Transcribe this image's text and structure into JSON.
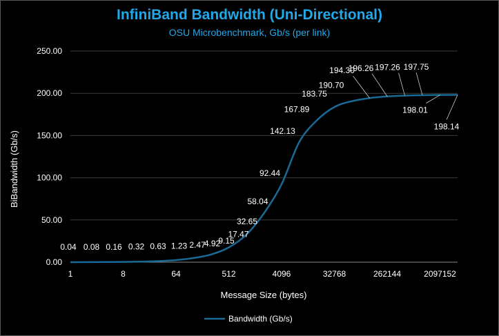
{
  "chart_data": {
    "type": "line",
    "title": "InfiniBand Bandwidth (Uni-Directional)",
    "subtitle": "OSU Microbenchmark, Gb/s (per link)",
    "xlabel": "Message Size (bytes)",
    "ylabel": "BiBandwidth (Gb/s)",
    "x_scale": "log2",
    "xlim": [
      1,
      4194304
    ],
    "ylim": [
      0,
      250
    ],
    "yticks": [
      "0.00",
      "50.00",
      "100.00",
      "150.00",
      "200.00",
      "250.00"
    ],
    "xtick_labels": [
      "1",
      "8",
      "64",
      "512",
      "4096",
      "32768",
      "262144",
      "2097152"
    ],
    "grid": true,
    "legend": {
      "position": "bottom",
      "entries": [
        "Bandwidth (Gb/s)"
      ]
    },
    "series": [
      {
        "name": "Bandwidth (Gb/s)",
        "color": "#1a6a96",
        "x": [
          1,
          2,
          4,
          8,
          16,
          32,
          64,
          128,
          256,
          512,
          1024,
          2048,
          4096,
          8192,
          16384,
          32768,
          65536,
          131072,
          262144,
          524288,
          1048576,
          2097152,
          4194304
        ],
        "values": [
          0.04,
          0.08,
          0.16,
          0.32,
          0.63,
          1.23,
          2.47,
          4.92,
          9.15,
          17.47,
          32.65,
          58.04,
          92.44,
          142.13,
          167.89,
          183.75,
          190.7,
          194.3,
          196.26,
          197.26,
          197.75,
          198.01,
          198.14
        ],
        "labels": [
          "0.04",
          "0.08",
          "0.16",
          "0.32",
          "0.63",
          "1.23",
          "2.47",
          "4.92",
          "9.15",
          "17.47",
          "32.65",
          "58.04",
          "92.44",
          "142.13",
          "167.89",
          "183.75",
          "190.70",
          "194.30",
          "196.26",
          "197.26",
          "197.75",
          "198.01",
          "198.14"
        ]
      }
    ]
  }
}
